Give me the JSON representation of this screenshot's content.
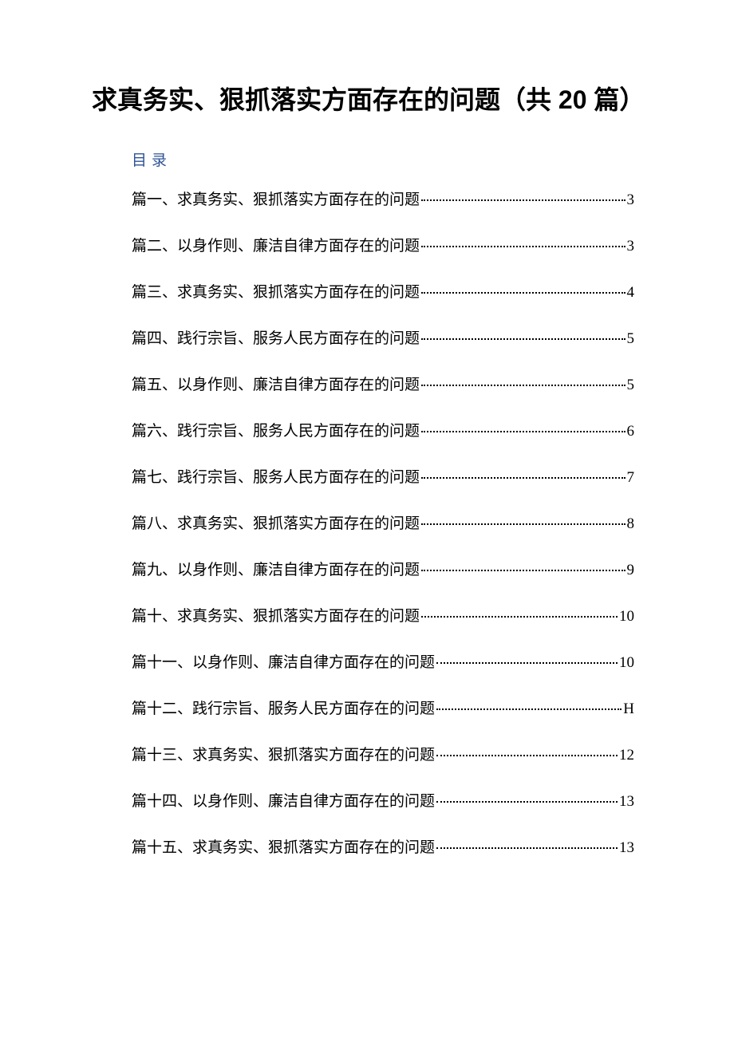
{
  "title": "求真务实、狠抓落实方面存在的问题（共 20 篇）",
  "toc_label": "目录",
  "toc_label_color": "#2e5395",
  "title_fontsize": 32,
  "body_fontsize": 19,
  "background_color": "#ffffff",
  "text_color": "#000000",
  "toc": [
    {
      "text": "篇一、求真务实、狠抓落实方面存在的问题",
      "page": "3"
    },
    {
      "text": "篇二、以身作则、廉洁自律方面存在的问题",
      "page": "3"
    },
    {
      "text": "篇三、求真务实、狠抓落实方面存在的问题",
      "page": "4"
    },
    {
      "text": "篇四、践行宗旨、服务人民方面存在的问题",
      "page": "5"
    },
    {
      "text": "篇五、以身作则、廉洁自律方面存在的问题",
      "page": "5"
    },
    {
      "text": "篇六、践行宗旨、服务人民方面存在的问题",
      "page": "6"
    },
    {
      "text": "篇七、践行宗旨、服务人民方面存在的问题",
      "page": "7"
    },
    {
      "text": "篇八、求真务实、狠抓落实方面存在的问题",
      "page": "8"
    },
    {
      "text": "篇九、以身作则、廉洁自律方面存在的问题",
      "page": "9"
    },
    {
      "text": "篇十、求真务实、狠抓落实方面存在的问题",
      "page": "10"
    },
    {
      "text": "篇十一、以身作则、廉洁自律方面存在的问题 ",
      "page": "10"
    },
    {
      "text": "篇十二、践行宗旨、服务人民方面存在的问题",
      "page": "H"
    },
    {
      "text": "篇十三、求真务实、狠抓落实方面存在的问题 ",
      "page": "12"
    },
    {
      "text": "篇十四、以身作则、廉洁自律方面存在的问题 ",
      "page": "13"
    },
    {
      "text": "篇十五、求真务实、狠抓落实方面存在的问题 ",
      "page": "13"
    }
  ]
}
